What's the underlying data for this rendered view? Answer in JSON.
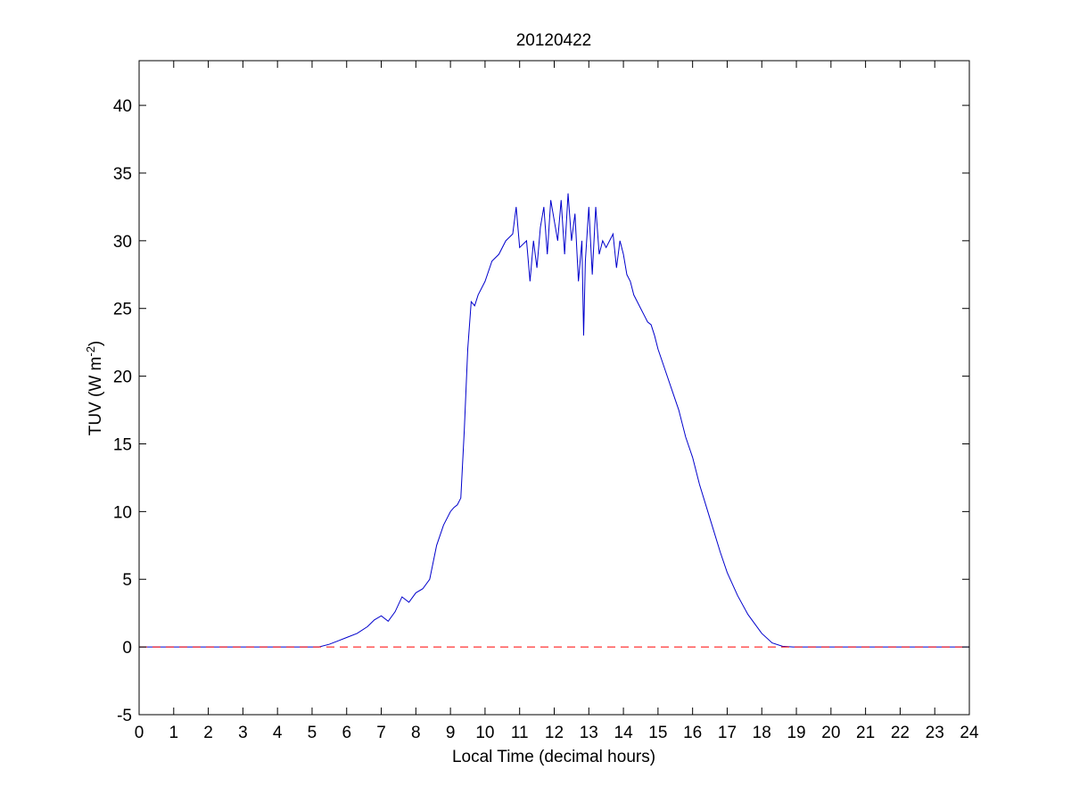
{
  "chart_data": {
    "type": "line",
    "title": "20120422",
    "xlabel": "Local Time (decimal hours)",
    "ylabel_main": "TUV (W m",
    "ylabel_sup": "-2",
    "ylabel_tail": ")",
    "xlim": [
      0,
      24
    ],
    "ylim": [
      -5,
      43.3
    ],
    "xticks": [
      0,
      1,
      2,
      3,
      4,
      5,
      6,
      7,
      8,
      9,
      10,
      11,
      12,
      13,
      14,
      15,
      16,
      17,
      18,
      19,
      20,
      21,
      22,
      23,
      24
    ],
    "yticks": [
      -5,
      0,
      5,
      10,
      15,
      20,
      25,
      30,
      35,
      40
    ],
    "grid": false,
    "legend": "none",
    "series": [
      {
        "color": "#0000cc",
        "style": "solid",
        "x": [
          0,
          5.2,
          5.5,
          5.8,
          6.0,
          6.3,
          6.6,
          6.8,
          7.0,
          7.2,
          7.4,
          7.6,
          7.8,
          8.0,
          8.2,
          8.4,
          8.6,
          8.8,
          9.0,
          9.1,
          9.2,
          9.3,
          9.4,
          9.5,
          9.6,
          9.7,
          9.8,
          10.0,
          10.2,
          10.4,
          10.6,
          10.8,
          10.9,
          11.0,
          11.2,
          11.3,
          11.4,
          11.5,
          11.6,
          11.7,
          11.8,
          11.9,
          12.0,
          12.1,
          12.2,
          12.3,
          12.4,
          12.5,
          12.6,
          12.7,
          12.8,
          12.85,
          12.9,
          13.0,
          13.1,
          13.2,
          13.3,
          13.4,
          13.5,
          13.6,
          13.7,
          13.8,
          13.9,
          14.0,
          14.1,
          14.2,
          14.3,
          14.4,
          14.5,
          14.6,
          14.7,
          14.8,
          14.9,
          15.0,
          15.2,
          15.4,
          15.6,
          15.8,
          16.0,
          16.2,
          16.5,
          16.8,
          17.0,
          17.3,
          17.6,
          18.0,
          18.3,
          18.6,
          18.9,
          19.1,
          19.3,
          24
        ],
        "y": [
          0,
          0,
          0.2,
          0.5,
          0.7,
          1.0,
          1.5,
          2.0,
          2.3,
          1.9,
          2.6,
          3.7,
          3.3,
          4.0,
          4.3,
          5.0,
          7.5,
          9.0,
          10.0,
          10.3,
          10.5,
          11.0,
          16.0,
          22.0,
          25.5,
          25.2,
          26.0,
          27.0,
          28.5,
          29.0,
          30.0,
          30.5,
          32.5,
          29.5,
          30.0,
          27.0,
          30.0,
          28.0,
          31.0,
          32.5,
          29.0,
          33.0,
          31.5,
          30.0,
          33.0,
          29.0,
          33.5,
          30.0,
          32.0,
          27.0,
          30.0,
          23.0,
          28.5,
          32.5,
          27.5,
          32.5,
          29.0,
          30.0,
          29.5,
          30.0,
          30.5,
          28.0,
          30.0,
          29.0,
          27.5,
          27.0,
          26.0,
          25.5,
          25.0,
          24.5,
          24.0,
          23.8,
          23.0,
          22.0,
          20.5,
          19.0,
          17.5,
          15.5,
          14.0,
          12.0,
          9.5,
          7.0,
          5.5,
          3.8,
          2.4,
          1.0,
          0.3,
          0.05,
          0,
          0,
          0,
          0
        ]
      },
      {
        "color": "#ff0000",
        "style": "dashed",
        "x": [
          0,
          24
        ],
        "y": [
          0,
          0
        ]
      }
    ]
  }
}
